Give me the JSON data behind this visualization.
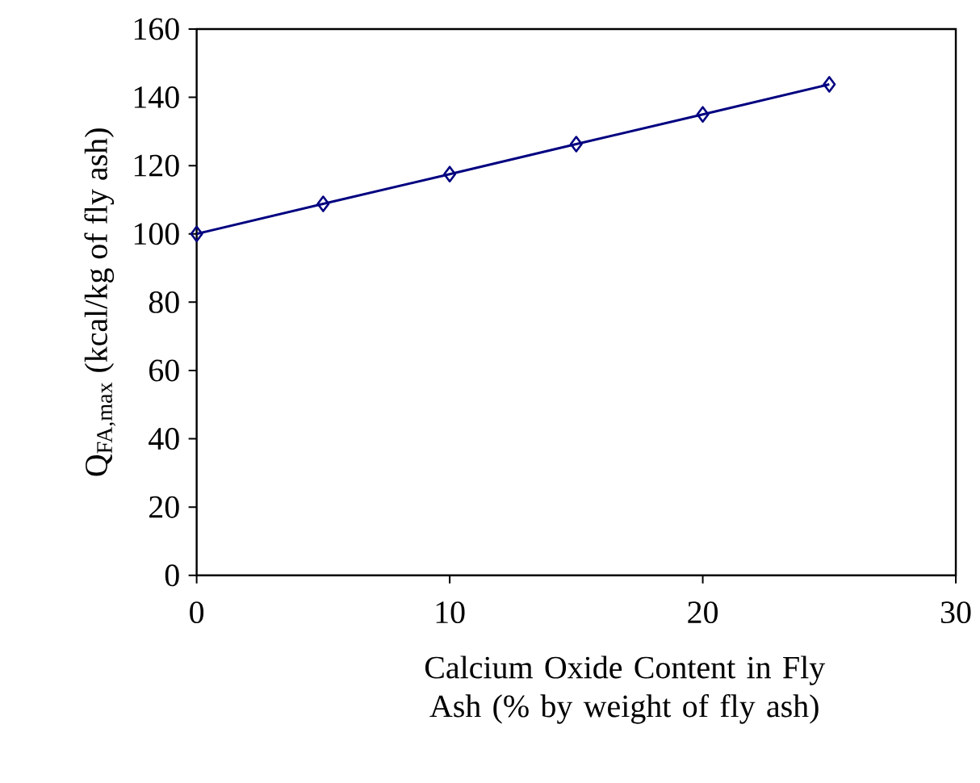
{
  "chart_data": {
    "type": "line",
    "xlabel": "Calcium Oxide Content in Fly Ash (% by weight of fly ash)",
    "ylabel": "Q$_{FA,max}$ (kcal/kg of fly ash)",
    "x": [
      0,
      5,
      10,
      15,
      20,
      25
    ],
    "series": [
      {
        "color": "#000080",
        "values": [
          100,
          108.8,
          117.5,
          126.3,
          135,
          143.8
        ]
      }
    ],
    "xlim": [
      0,
      30
    ],
    "ylim": [
      0,
      160
    ],
    "xticks": [
      0,
      10,
      20,
      30
    ],
    "yticks": [
      0,
      20,
      40,
      60,
      80,
      100,
      120,
      140,
      160
    ],
    "marker": "diamond",
    "line_style": "solid",
    "grid": false
  }
}
